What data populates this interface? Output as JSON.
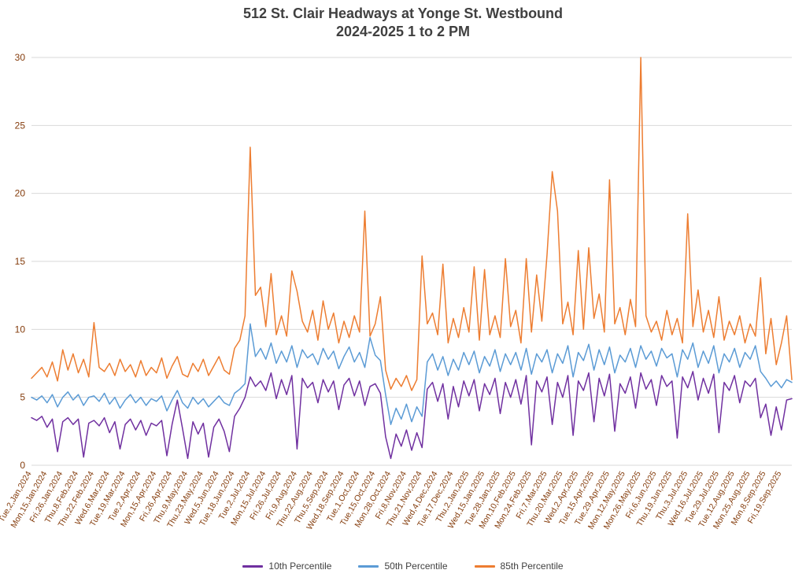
{
  "title": {
    "line1": "512 St. Clair Headways at Yonge St. Westbound",
    "line2": "2024-2025 1 to 2 PM"
  },
  "colors": {
    "title_text": "#404040",
    "axis_labels": "#843C0C",
    "gridline": "#D9D9D9",
    "legend_text": "#404040"
  },
  "chart_data": {
    "type": "line",
    "title": "512 St. Clair Headways at Yonge St. Westbound",
    "subtitle": "2024-2025 1 to 2 PM",
    "xlabel": "",
    "ylabel": "",
    "ylim": [
      0,
      30
    ],
    "y_ticks": [
      0,
      5,
      10,
      15,
      20,
      25,
      30
    ],
    "grid": true,
    "legend_position": "bottom",
    "points_per_tick": 3,
    "x_tick_labels": [
      "Tue,2,Jan,2024",
      "Mon,15,Jan,2024",
      "Fri,26,Jan,2024",
      "Thu,8,Feb,2024",
      "Thu,22,Feb,2024",
      "Wed,6,Mar,2024",
      "Tue,19,Mar,2024",
      "Tue,2,Apr,2024",
      "Mon,15,Apr,2024",
      "Fri,26,Apr,2024",
      "Thu,9,May,2024",
      "Thu,23,May,2024",
      "Wed,5,Jun,2024",
      "Tue,18,Jun,2024",
      "Tue,2,Jul,2024",
      "Mon,15,Jul,2024",
      "Fri,26,Jul,2024",
      "Fri,9,Aug,2024",
      "Thu,22,Aug,2024",
      "Thu,5,Sep,2024",
      "Wed,18,Sep,2024",
      "Tue,1,Oct,2024",
      "Tue,15,Oct,2024",
      "Mon,28,Oct,2024",
      "Fri,8,Nov,2024",
      "Thu,21,Nov,2024",
      "Wed,4,Dec,2024",
      "Tue,17,Dec,2024",
      "Thu,2,Jan,2025",
      "Wed,15,Jan,2025",
      "Tue,28,Jan,2025",
      "Mon,10,Feb,2025",
      "Mon,24,Feb,2025",
      "Fri,7,Mar,2025",
      "Thu,20,Mar,2025",
      "Wed,2,Apr,2025",
      "Tue,15,Apr,2025",
      "Tue,29,Apr,2025",
      "Mon,12,May,2025",
      "Mon,26,May,2025",
      "Fri,6,Jun,2025",
      "Thu,19,Jun,2025",
      "Thu,3,Jul,2025",
      "Wed,16,Jul,2025",
      "Tue,29,Jul,2025",
      "Tue,12,Aug,2025",
      "Mon,25,Aug,2025",
      "Mon,8,Sep,2025",
      "Fri,19,Sep,2025"
    ],
    "series": [
      {
        "name": "10th Percentile",
        "color": "#7030A0",
        "values": [
          3.5,
          3.3,
          3.6,
          2.8,
          3.4,
          1.0,
          3.2,
          3.5,
          3.0,
          3.4,
          0.6,
          3.1,
          3.3,
          2.9,
          3.5,
          2.4,
          3.2,
          1.2,
          3.0,
          3.4,
          2.6,
          3.3,
          2.2,
          3.1,
          2.9,
          3.3,
          0.7,
          3.0,
          4.8,
          2.7,
          0.5,
          3.2,
          2.3,
          3.1,
          0.6,
          2.8,
          3.4,
          2.5,
          1.0,
          3.6,
          4.2,
          5.0,
          6.5,
          5.8,
          6.2,
          5.5,
          6.8,
          4.9,
          6.3,
          5.2,
          6.6,
          1.2,
          6.4,
          5.7,
          6.1,
          4.6,
          6.3,
          5.4,
          6.2,
          4.1,
          5.9,
          6.4,
          5.1,
          6.2,
          4.4,
          5.8,
          6.0,
          5.3,
          2.1,
          0.5,
          2.3,
          1.4,
          2.6,
          1.1,
          2.4,
          1.3,
          5.6,
          6.1,
          4.7,
          6.0,
          3.4,
          5.8,
          4.3,
          6.2,
          5.1,
          6.3,
          4.0,
          6.0,
          5.2,
          6.4,
          3.8,
          6.1,
          5.0,
          6.3,
          4.5,
          6.6,
          1.5,
          6.2,
          5.4,
          6.5,
          3.0,
          6.1,
          5.0,
          6.6,
          2.2,
          6.2,
          5.5,
          6.8,
          3.2,
          6.4,
          5.1,
          6.7,
          2.5,
          6.0,
          5.3,
          6.5,
          4.2,
          6.8,
          5.6,
          6.3,
          4.4,
          6.6,
          5.8,
          6.2,
          2.0,
          6.5,
          5.7,
          6.9,
          4.8,
          6.4,
          5.3,
          6.7,
          2.4,
          6.1,
          5.5,
          6.6,
          4.6,
          6.2,
          5.8,
          6.4,
          3.5,
          4.5,
          2.2,
          4.3,
          2.6,
          4.8,
          4.9
        ]
      },
      {
        "name": "50th Percentile",
        "color": "#5B9BD5",
        "values": [
          5.0,
          4.8,
          5.1,
          4.6,
          5.2,
          4.3,
          5.0,
          5.4,
          4.8,
          5.2,
          4.4,
          5.0,
          5.1,
          4.7,
          5.3,
          4.5,
          5.0,
          4.2,
          4.8,
          5.2,
          4.6,
          5.0,
          4.4,
          4.9,
          4.7,
          5.1,
          4.0,
          4.8,
          5.5,
          4.6,
          4.2,
          5.0,
          4.5,
          4.9,
          4.3,
          4.7,
          5.1,
          4.6,
          4.4,
          5.3,
          5.6,
          6.0,
          10.4,
          8.0,
          8.6,
          7.8,
          9.0,
          7.5,
          8.4,
          7.6,
          8.8,
          7.2,
          8.5,
          7.9,
          8.2,
          7.4,
          8.6,
          7.8,
          8.4,
          7.1,
          8.0,
          8.7,
          7.6,
          8.3,
          7.2,
          9.4,
          8.1,
          7.7,
          5.2,
          3.0,
          4.2,
          3.4,
          4.5,
          3.2,
          4.3,
          3.6,
          7.6,
          8.2,
          7.0,
          8.0,
          6.6,
          7.8,
          7.0,
          8.3,
          7.4,
          8.4,
          6.8,
          8.0,
          7.3,
          8.5,
          6.9,
          8.2,
          7.4,
          8.3,
          7.0,
          8.6,
          6.7,
          8.2,
          7.6,
          8.5,
          6.8,
          8.2,
          7.5,
          8.8,
          6.5,
          8.3,
          7.7,
          8.9,
          7.0,
          8.5,
          7.4,
          8.7,
          6.8,
          8.1,
          7.6,
          8.6,
          7.2,
          8.8,
          7.8,
          8.4,
          7.3,
          8.6,
          7.9,
          8.2,
          6.5,
          8.5,
          7.8,
          9.0,
          7.2,
          8.4,
          7.5,
          8.8,
          6.8,
          8.2,
          7.6,
          8.6,
          7.2,
          8.3,
          7.8,
          8.8,
          6.9,
          6.4,
          5.8,
          6.2,
          5.7,
          6.3,
          6.1
        ]
      },
      {
        "name": "85th Percentile",
        "color": "#ED7D31",
        "values": [
          6.4,
          6.8,
          7.2,
          6.5,
          7.6,
          6.2,
          8.5,
          7.0,
          8.2,
          6.8,
          7.8,
          6.5,
          10.5,
          7.2,
          6.9,
          7.5,
          6.6,
          7.8,
          6.9,
          7.4,
          6.5,
          7.7,
          6.6,
          7.2,
          6.8,
          7.9,
          6.4,
          7.3,
          8.0,
          6.7,
          6.5,
          7.5,
          6.9,
          7.8,
          6.6,
          7.3,
          8.0,
          7.0,
          6.7,
          8.6,
          9.2,
          11.0,
          23.4,
          12.5,
          13.1,
          10.2,
          14.1,
          9.6,
          11.0,
          9.5,
          14.3,
          12.8,
          10.6,
          9.8,
          11.4,
          9.2,
          12.1,
          10.0,
          11.2,
          9.0,
          10.6,
          9.4,
          11.0,
          9.8,
          18.7,
          9.5,
          10.4,
          12.4,
          7.0,
          5.6,
          6.4,
          5.8,
          6.6,
          5.5,
          6.3,
          15.4,
          10.4,
          11.2,
          9.6,
          14.8,
          9.0,
          10.8,
          9.4,
          11.6,
          9.8,
          14.6,
          9.2,
          14.4,
          9.6,
          11.0,
          9.4,
          15.2,
          10.2,
          11.4,
          9.0,
          15.2,
          9.8,
          14.0,
          10.6,
          15.5,
          21.6,
          18.7,
          10.4,
          12.0,
          9.6,
          15.8,
          10.0,
          16.0,
          10.8,
          12.6,
          9.8,
          21.0,
          10.4,
          11.6,
          9.6,
          12.2,
          10.2,
          30.0,
          11.0,
          9.8,
          10.6,
          9.2,
          11.4,
          9.6,
          10.8,
          9.0,
          18.5,
          10.2,
          12.9,
          9.8,
          11.4,
          9.4,
          12.4,
          9.2,
          10.6,
          9.6,
          11.0,
          9.0,
          10.4,
          9.5,
          13.8,
          8.2,
          10.8,
          7.4,
          9.0,
          11.0,
          6.3
        ]
      }
    ]
  }
}
